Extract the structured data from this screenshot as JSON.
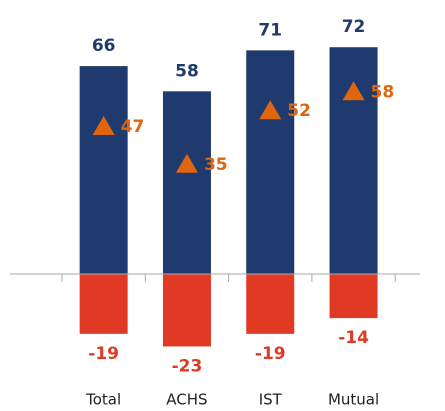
{
  "chart_data": {
    "type": "bar",
    "categories": [
      "Total",
      "ACHS",
      "IST",
      "Mutual"
    ],
    "series": [
      {
        "color": "#1f3a6e",
        "values": [
          66,
          58,
          71,
          72
        ]
      },
      {
        "color": "#e03a24",
        "values": [
          -19,
          -23,
          -19,
          -14
        ]
      },
      {
        "color": "#e0650f",
        "values": [
          47,
          35,
          52,
          58
        ],
        "marker": "triangle"
      }
    ],
    "ylim": [
      -25,
      80
    ]
  }
}
